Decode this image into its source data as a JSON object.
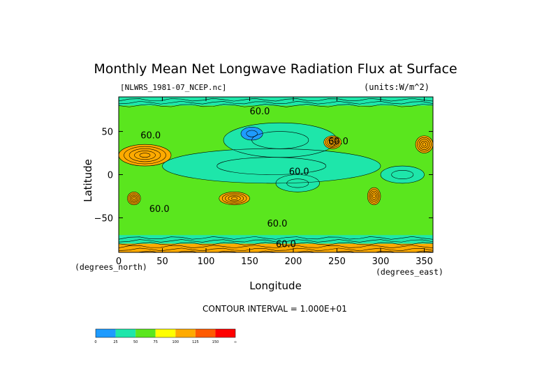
{
  "chart_data": {
    "type": "heatmap",
    "title": "Monthly Mean Net Longwave Radiation Flux at Surface",
    "file_label": "[NLWRS_1981-07_NCEP.nc]",
    "units_label": "(units:W/m^2)",
    "xlabel": "Longitude",
    "ylabel": "Latitude",
    "x_units": "(degrees_east)",
    "y_units": "(degrees_north)",
    "xlim": [
      0,
      360
    ],
    "ylim": [
      -90,
      90
    ],
    "x_ticks": [
      "0",
      "50",
      "100",
      "150",
      "200",
      "250",
      "300",
      "350"
    ],
    "y_ticks": [
      "50",
      "0",
      "−50"
    ],
    "contour_interval": "CONTOUR INTERVAL = 1.000E+01",
    "contour_labels": [
      "60.0",
      "60.0",
      "60.0",
      "60.0",
      "60.0",
      "60.0",
      "60.0"
    ],
    "colorbar": {
      "labels": [
        "0",
        "25",
        "50",
        "75",
        "100",
        "125",
        "150",
        "∞"
      ],
      "colors": [
        "#1e9bff",
        "#1ee6aa",
        "#5ae61e",
        "#ffff00",
        "#ffaa00",
        "#ff5a00",
        "#ff0000"
      ]
    },
    "regions": [
      {
        "lon": [
          0,
          360
        ],
        "lat": [
          -90,
          90
        ],
        "value": 55
      },
      {
        "lon": [
          50,
          300
        ],
        "lat": [
          -10,
          30
        ],
        "value": 35
      },
      {
        "lon": [
          120,
          250
        ],
        "lat": [
          20,
          60
        ],
        "value": 35
      },
      {
        "lon": [
          180,
          230
        ],
        "lat": [
          -20,
          0
        ],
        "value": 40
      },
      {
        "lon": [
          140,
          165
        ],
        "lat": [
          40,
          55
        ],
        "value": 15
      },
      {
        "lon": [
          300,
          350
        ],
        "lat": [
          -10,
          10
        ],
        "value": 35
      },
      {
        "lon": [
          0,
          60
        ],
        "lat": [
          10,
          35
        ],
        "value": 120
      },
      {
        "lon": [
          10,
          25
        ],
        "lat": [
          -35,
          -20
        ],
        "value": 110
      },
      {
        "lon": [
          115,
          150
        ],
        "lat": [
          -35,
          -20
        ],
        "value": 100
      },
      {
        "lon": [
          235,
          255
        ],
        "lat": [
          30,
          45
        ],
        "value": 120
      },
      {
        "lon": [
          285,
          300
        ],
        "lat": [
          -35,
          -15
        ],
        "value": 120
      },
      {
        "lon": [
          340,
          360
        ],
        "lat": [
          25,
          45
        ],
        "value": 120
      },
      {
        "lon": [
          0,
          360
        ],
        "lat": [
          -80,
          -70
        ],
        "value": 35
      },
      {
        "lon": [
          0,
          360
        ],
        "lat": [
          -90,
          -80
        ],
        "value": 100
      },
      {
        "lon": [
          0,
          360
        ],
        "lat": [
          80,
          90
        ],
        "value": 45
      }
    ]
  }
}
